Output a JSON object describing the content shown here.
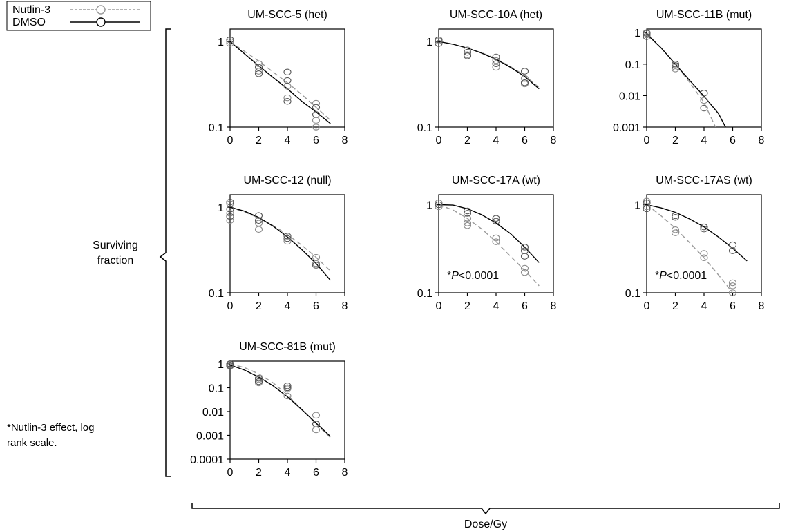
{
  "legend": {
    "nutlin": {
      "label": "Nutlin-3",
      "color": "#9a9a9a"
    },
    "dmso": {
      "label": "DMSO",
      "color": "#000000"
    }
  },
  "ylabel": {
    "line1": "Surviving",
    "line2": "fraction"
  },
  "xlabel": "Dose/Gy",
  "footnote": {
    "line1": "*Nutlin-3 effect, log",
    "line2": "rank scale."
  },
  "chart_data": [
    {
      "type": "scatter",
      "title": "UM-SCC-5 (het)",
      "xlim": [
        0,
        8
      ],
      "xticks": [
        "0",
        "2",
        "4",
        "6",
        "8"
      ],
      "yscale": "log",
      "ylim": [
        0.1,
        1.4
      ],
      "yticks": [
        "1",
        "0.1"
      ],
      "ytick_values": [
        1,
        0.1
      ],
      "annotation": null,
      "series": [
        {
          "name": "Nutlin-3",
          "style": "dashed",
          "points": [
            [
              0,
              1.0
            ],
            [
              0,
              0.95
            ],
            [
              2,
              0.45
            ],
            [
              2,
              0.55
            ],
            [
              4,
              0.3
            ],
            [
              4,
              0.22
            ],
            [
              6,
              0.12
            ],
            [
              6,
              0.1
            ],
            [
              6,
              0.19
            ]
          ],
          "curve": [
            [
              0,
              1.0
            ],
            [
              1,
              0.77
            ],
            [
              2,
              0.59
            ],
            [
              3,
              0.44
            ],
            [
              4,
              0.33
            ],
            [
              5,
              0.24
            ],
            [
              6,
              0.17
            ],
            [
              7,
              0.12
            ]
          ]
        },
        {
          "name": "DMSO",
          "style": "solid",
          "points": [
            [
              0,
              1.05
            ],
            [
              2,
              0.5
            ],
            [
              2,
              0.42
            ],
            [
              4,
              0.44
            ],
            [
              4,
              0.35
            ],
            [
              4,
              0.2
            ],
            [
              6,
              0.17
            ],
            [
              6,
              0.14
            ]
          ],
          "curve": [
            [
              0,
              1.0
            ],
            [
              1,
              0.72
            ],
            [
              2,
              0.52
            ],
            [
              3,
              0.38
            ],
            [
              4,
              0.28
            ],
            [
              5,
              0.2
            ],
            [
              6,
              0.15
            ],
            [
              7,
              0.11
            ]
          ]
        }
      ]
    },
    {
      "type": "scatter",
      "title": "UM-SCC-10A (het)",
      "xlim": [
        0,
        8
      ],
      "xticks": [
        "0",
        "2",
        "4",
        "6",
        "8"
      ],
      "yscale": "log",
      "ylim": [
        0.1,
        1.4
      ],
      "yticks": [
        "1",
        "0.1"
      ],
      "ytick_values": [
        1,
        0.1
      ],
      "annotation": null,
      "series": [
        {
          "name": "Nutlin-3",
          "style": "dashed",
          "points": [
            [
              0,
              1.02
            ],
            [
              2,
              0.8
            ],
            [
              2,
              0.7
            ],
            [
              4,
              0.6
            ],
            [
              4,
              0.5
            ],
            [
              6,
              0.37
            ],
            [
              6,
              0.32
            ]
          ],
          "curve": [
            [
              0,
              1.0
            ],
            [
              1,
              0.93
            ],
            [
              2,
              0.84
            ],
            [
              3,
              0.74
            ],
            [
              4,
              0.63
            ],
            [
              5,
              0.51
            ],
            [
              6,
              0.4
            ],
            [
              7,
              0.29
            ]
          ]
        },
        {
          "name": "DMSO",
          "style": "solid",
          "points": [
            [
              0,
              0.95
            ],
            [
              0,
              1.05
            ],
            [
              2,
              0.75
            ],
            [
              2,
              0.68
            ],
            [
              4,
              0.66
            ],
            [
              4,
              0.55
            ],
            [
              6,
              0.45
            ],
            [
              6,
              0.33
            ]
          ],
          "curve": [
            [
              0,
              1.0
            ],
            [
              1,
              0.93
            ],
            [
              2,
              0.84
            ],
            [
              3,
              0.73
            ],
            [
              4,
              0.62
            ],
            [
              5,
              0.5
            ],
            [
              6,
              0.39
            ],
            [
              7,
              0.28
            ]
          ]
        }
      ]
    },
    {
      "type": "scatter",
      "title": "UM-SCC-11B (mut)",
      "xlim": [
        0,
        8
      ],
      "xticks": [
        "0",
        "2",
        "4",
        "6",
        "8"
      ],
      "yscale": "log",
      "ylim": [
        0.001,
        1.3
      ],
      "yticks": [
        "1",
        "0.1",
        "0.01",
        "0.001"
      ],
      "ytick_values": [
        1,
        0.1,
        0.01,
        0.001
      ],
      "annotation": null,
      "series": [
        {
          "name": "Nutlin-3",
          "style": "dashed",
          "points": [
            [
              0,
              1.0
            ],
            [
              0,
              0.85
            ],
            [
              2,
              0.08
            ],
            [
              2,
              0.07
            ],
            [
              4,
              0.007
            ]
          ],
          "curve": [
            [
              0,
              0.95
            ],
            [
              1,
              0.33
            ],
            [
              2,
              0.1
            ],
            [
              3,
              0.026
            ],
            [
              4,
              0.006
            ],
            [
              4.8,
              0.001
            ]
          ]
        },
        {
          "name": "DMSO",
          "style": "solid",
          "points": [
            [
              0,
              0.95
            ],
            [
              0,
              0.75
            ],
            [
              2,
              0.1
            ],
            [
              2,
              0.09
            ],
            [
              4,
              0.012
            ],
            [
              4,
              0.004
            ]
          ],
          "curve": [
            [
              0,
              0.9
            ],
            [
              1,
              0.33
            ],
            [
              2,
              0.1
            ],
            [
              3,
              0.03
            ],
            [
              4,
              0.0095
            ],
            [
              5,
              0.0027
            ],
            [
              5.5,
              0.001
            ]
          ]
        }
      ]
    },
    {
      "type": "scatter",
      "title": "UM-SCC-12 (null)",
      "xlim": [
        0,
        8
      ],
      "xticks": [
        "0",
        "2",
        "4",
        "6",
        "8"
      ],
      "yscale": "log",
      "ylim": [
        0.1,
        1.4
      ],
      "yticks": [
        "1",
        "0.1"
      ],
      "ytick_values": [
        1,
        0.1
      ],
      "annotation": null,
      "series": [
        {
          "name": "Nutlin-3",
          "style": "dashed",
          "points": [
            [
              0,
              1.1
            ],
            [
              0,
              0.85
            ],
            [
              0,
              0.7
            ],
            [
              2,
              0.65
            ],
            [
              2,
              0.55
            ],
            [
              4,
              0.4
            ],
            [
              6,
              0.26
            ],
            [
              6,
              0.22
            ]
          ],
          "curve": [
            [
              0,
              1.0
            ],
            [
              1,
              0.88
            ],
            [
              2,
              0.75
            ],
            [
              3,
              0.61
            ],
            [
              4,
              0.48
            ],
            [
              5,
              0.36
            ],
            [
              6,
              0.26
            ],
            [
              7,
              0.18
            ]
          ]
        },
        {
          "name": "DMSO",
          "style": "solid",
          "points": [
            [
              0,
              1.15
            ],
            [
              0,
              0.95
            ],
            [
              0,
              0.78
            ],
            [
              2,
              0.8
            ],
            [
              2,
              0.7
            ],
            [
              4,
              0.46
            ],
            [
              4,
              0.43
            ],
            [
              6,
              0.21
            ]
          ],
          "curve": [
            [
              0,
              1.0
            ],
            [
              1,
              0.9
            ],
            [
              2,
              0.76
            ],
            [
              3,
              0.6
            ],
            [
              4,
              0.45
            ],
            [
              5,
              0.32
            ],
            [
              6,
              0.22
            ],
            [
              7,
              0.14
            ]
          ]
        }
      ]
    },
    {
      "type": "scatter",
      "title": "UM-SCC-17A (wt)",
      "xlim": [
        0,
        8
      ],
      "xticks": [
        "0",
        "2",
        "4",
        "6",
        "8"
      ],
      "yscale": "log",
      "ylim": [
        0.1,
        1.3
      ],
      "yticks": [
        "1",
        "0.1"
      ],
      "ytick_values": [
        1,
        0.1
      ],
      "annotation": {
        "prefix": "*",
        "italic": "P",
        "suffix": "<0.0001"
      },
      "series": [
        {
          "name": "Nutlin-3",
          "style": "dashed",
          "points": [
            [
              0,
              1.05
            ],
            [
              0,
              0.95
            ],
            [
              2,
              0.7
            ],
            [
              2,
              0.62
            ],
            [
              2,
              0.58
            ],
            [
              4,
              0.42
            ],
            [
              4,
              0.38
            ],
            [
              6,
              0.19
            ],
            [
              6,
              0.17
            ]
          ],
          "curve": [
            [
              0,
              1.0
            ],
            [
              1,
              0.87
            ],
            [
              2,
              0.7
            ],
            [
              3,
              0.53
            ],
            [
              4,
              0.38
            ],
            [
              5,
              0.26
            ],
            [
              6,
              0.18
            ],
            [
              7,
              0.12
            ]
          ]
        },
        {
          "name": "DMSO",
          "style": "solid",
          "points": [
            [
              0,
              1.0
            ],
            [
              2,
              0.85
            ],
            [
              2,
              0.8
            ],
            [
              4,
              0.7
            ],
            [
              4,
              0.65
            ],
            [
              6,
              0.33
            ],
            [
              6,
              0.3
            ],
            [
              6,
              0.26
            ]
          ],
          "curve": [
            [
              0,
              1.0
            ],
            [
              1,
              0.99
            ],
            [
              2,
              0.9
            ],
            [
              3,
              0.77
            ],
            [
              4,
              0.62
            ],
            [
              5,
              0.47
            ],
            [
              6,
              0.33
            ],
            [
              7,
              0.22
            ]
          ]
        }
      ]
    },
    {
      "type": "scatter",
      "title": "UM-SCC-17AS (wt)",
      "xlim": [
        0,
        8
      ],
      "xticks": [
        "0",
        "2",
        "4",
        "6",
        "8"
      ],
      "yscale": "log",
      "ylim": [
        0.1,
        1.3
      ],
      "yticks": [
        "1",
        "0.1"
      ],
      "ytick_values": [
        1,
        0.1
      ],
      "annotation": {
        "prefix": "*",
        "italic": "P",
        "suffix": "<0.0001"
      },
      "series": [
        {
          "name": "Nutlin-3",
          "style": "dashed",
          "points": [
            [
              0,
              1.1
            ],
            [
              0,
              0.95
            ],
            [
              2,
              0.52
            ],
            [
              2,
              0.48
            ],
            [
              4,
              0.28
            ],
            [
              4,
              0.25
            ],
            [
              6,
              0.13
            ],
            [
              6,
              0.12
            ],
            [
              6,
              0.1
            ]
          ],
          "curve": [
            [
              0,
              1.0
            ],
            [
              1,
              0.75
            ],
            [
              2,
              0.54
            ],
            [
              3,
              0.37
            ],
            [
              4,
              0.25
            ],
            [
              5,
              0.16
            ],
            [
              6,
              0.1
            ]
          ]
        },
        {
          "name": "DMSO",
          "style": "solid",
          "points": [
            [
              0,
              1.05
            ],
            [
              0,
              0.9
            ],
            [
              2,
              0.75
            ],
            [
              2,
              0.72
            ],
            [
              4,
              0.56
            ],
            [
              4,
              0.53
            ],
            [
              6,
              0.35
            ],
            [
              6,
              0.3
            ]
          ],
          "curve": [
            [
              0,
              1.0
            ],
            [
              1,
              0.92
            ],
            [
              2,
              0.82
            ],
            [
              3,
              0.69
            ],
            [
              4,
              0.56
            ],
            [
              5,
              0.43
            ],
            [
              6,
              0.32
            ],
            [
              7,
              0.23
            ]
          ]
        }
      ]
    },
    {
      "type": "scatter",
      "title": "UM-SCC-81B (mut)",
      "xlim": [
        0,
        8
      ],
      "xticks": [
        "0",
        "2",
        "4",
        "6",
        "8"
      ],
      "yscale": "log",
      "ylim": [
        0.0001,
        1.3
      ],
      "yticks": [
        "1",
        "0.1",
        "0.01",
        "0.001",
        "0.0001"
      ],
      "ytick_values": [
        1,
        0.1,
        0.01,
        0.001,
        0.0001
      ],
      "annotation": null,
      "series": [
        {
          "name": "Nutlin-3",
          "style": "dashed",
          "points": [
            [
              0,
              0.95
            ],
            [
              0,
              0.8
            ],
            [
              2,
              0.22
            ],
            [
              2,
              0.16
            ],
            [
              4,
              0.09
            ],
            [
              4,
              0.045
            ],
            [
              6,
              0.007
            ],
            [
              6,
              0.003
            ],
            [
              6,
              0.0017
            ]
          ],
          "curve": [
            [
              0,
              1.0
            ],
            [
              1,
              0.7
            ],
            [
              2,
              0.38
            ],
            [
              3,
              0.16
            ],
            [
              4,
              0.05
            ],
            [
              5,
              0.012
            ],
            [
              6,
              0.003
            ],
            [
              7,
              0.0008
            ]
          ]
        },
        {
          "name": "DMSO",
          "style": "solid",
          "points": [
            [
              0,
              1.0
            ],
            [
              0,
              0.85
            ],
            [
              2,
              0.25
            ],
            [
              2,
              0.18
            ],
            [
              4,
              0.12
            ],
            [
              4,
              0.1
            ],
            [
              6,
              0.003
            ]
          ],
          "curve": [
            [
              0,
              0.9
            ],
            [
              1,
              0.55
            ],
            [
              2,
              0.28
            ],
            [
              3,
              0.12
            ],
            [
              4,
              0.042
            ],
            [
              5,
              0.012
            ],
            [
              6,
              0.0033
            ],
            [
              7,
              0.0009
            ]
          ]
        }
      ]
    }
  ]
}
